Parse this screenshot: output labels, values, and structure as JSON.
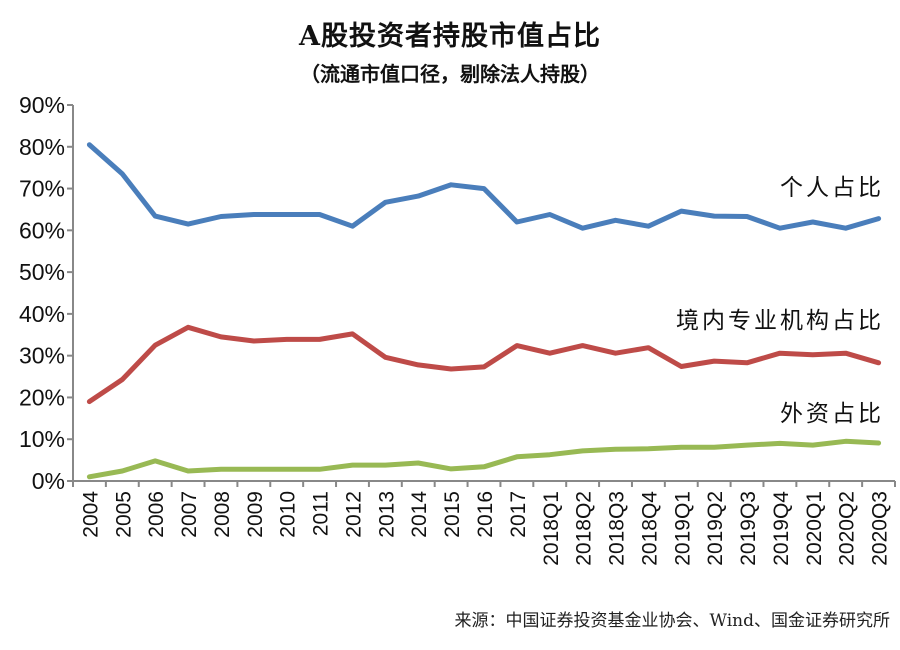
{
  "chart_data": {
    "type": "line",
    "title": "A股投资者持股市值占比",
    "subtitle": "（流通市值口径，剔除法人持股）",
    "xlabel": "",
    "ylabel": "",
    "ylim": [
      0,
      90
    ],
    "y_ticks": [
      "0%",
      "10%",
      "20%",
      "30%",
      "40%",
      "50%",
      "60%",
      "70%",
      "80%",
      "90%"
    ],
    "y_tick_values": [
      0,
      10,
      20,
      30,
      40,
      50,
      60,
      70,
      80,
      90
    ],
    "grid": false,
    "legend": "inline-labels-right",
    "categories": [
      "2004",
      "2005",
      "2006",
      "2007",
      "2008",
      "2009",
      "2010",
      "2011",
      "2012",
      "2013",
      "2014",
      "2015",
      "2016",
      "2017",
      "2018Q1",
      "2018Q2",
      "2018Q3",
      "2018Q4",
      "2019Q1",
      "2019Q2",
      "2019Q3",
      "2019Q4",
      "2020Q1",
      "2020Q2",
      "2020Q3"
    ],
    "series": [
      {
        "name": "个人占比",
        "color": "#4a7ebb",
        "values": [
          80.5,
          73.5,
          63.4,
          61.5,
          63.3,
          63.8,
          63.8,
          63.8,
          61.0,
          66.7,
          68.2,
          70.9,
          70.0,
          62.0,
          63.8,
          60.5,
          62.4,
          61.0,
          64.6,
          63.4,
          63.3,
          60.5,
          62.0,
          60.5,
          62.8
        ]
      },
      {
        "name": "境内专业机构占比",
        "color": "#be4b48",
        "values": [
          19.0,
          24.3,
          32.5,
          36.8,
          34.5,
          33.5,
          33.9,
          33.9,
          35.2,
          29.6,
          27.8,
          26.8,
          27.3,
          32.4,
          30.6,
          32.4,
          30.6,
          31.9,
          27.4,
          28.7,
          28.3,
          30.6,
          30.2,
          30.6,
          28.3
        ]
      },
      {
        "name": "外资占比",
        "color": "#98b954",
        "values": [
          1.0,
          2.4,
          4.8,
          2.4,
          2.8,
          2.8,
          2.8,
          2.8,
          3.8,
          3.8,
          4.3,
          2.9,
          3.4,
          5.8,
          6.3,
          7.2,
          7.6,
          7.7,
          8.1,
          8.1,
          8.6,
          9.0,
          8.6,
          9.5,
          9.1
        ]
      }
    ]
  },
  "source": "来源：中国证券投资基金业协会、Wind、国金证券研究所"
}
